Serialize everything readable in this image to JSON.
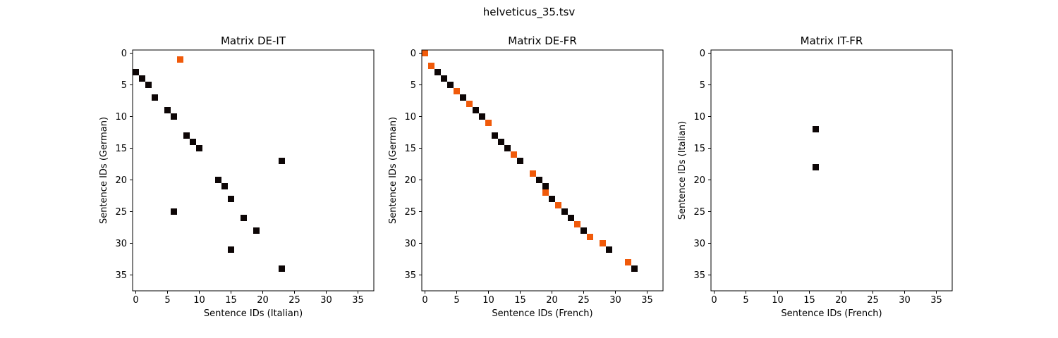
{
  "figure_title": "helveticus_35.tsv",
  "colors": {
    "black_cell": "#0d0606",
    "orange_cell": "#f05a0a",
    "axis": "#000000",
    "background": "#ffffff"
  },
  "chart_data": [
    {
      "type": "heatmap",
      "title": "Matrix DE-IT",
      "xlabel": "Sentence IDs (Italian)",
      "ylabel": "Sentence IDs (German)",
      "xlim": [
        -0.5,
        37.5
      ],
      "ylim": [
        37.5,
        -0.5
      ],
      "y_inverted": true,
      "xticks": [
        0,
        5,
        10,
        15,
        20,
        25,
        30,
        35
      ],
      "yticks": [
        0,
        5,
        10,
        15,
        20,
        25,
        30,
        35
      ],
      "grid": false,
      "points": [
        {
          "x": 7,
          "y": 1,
          "color": "orange"
        },
        {
          "x": 0,
          "y": 3,
          "color": "black"
        },
        {
          "x": 1,
          "y": 4,
          "color": "black"
        },
        {
          "x": 2,
          "y": 5,
          "color": "black"
        },
        {
          "x": 3,
          "y": 7,
          "color": "black"
        },
        {
          "x": 5,
          "y": 9,
          "color": "black"
        },
        {
          "x": 6,
          "y": 10,
          "color": "black"
        },
        {
          "x": 8,
          "y": 13,
          "color": "black"
        },
        {
          "x": 9,
          "y": 14,
          "color": "black"
        },
        {
          "x": 10,
          "y": 15,
          "color": "black"
        },
        {
          "x": 23,
          "y": 17,
          "color": "black"
        },
        {
          "x": 13,
          "y": 20,
          "color": "black"
        },
        {
          "x": 14,
          "y": 21,
          "color": "black"
        },
        {
          "x": 15,
          "y": 23,
          "color": "black"
        },
        {
          "x": 6,
          "y": 25,
          "color": "black"
        },
        {
          "x": 17,
          "y": 26,
          "color": "black"
        },
        {
          "x": 19,
          "y": 28,
          "color": "black"
        },
        {
          "x": 15,
          "y": 31,
          "color": "black"
        },
        {
          "x": 23,
          "y": 34,
          "color": "black"
        }
      ]
    },
    {
      "type": "heatmap",
      "title": "Matrix DE-FR",
      "xlabel": "Sentence IDs (French)",
      "ylabel": "Sentence IDs (German)",
      "xlim": [
        -0.5,
        37.5
      ],
      "ylim": [
        37.5,
        -0.5
      ],
      "y_inverted": true,
      "xticks": [
        0,
        5,
        10,
        15,
        20,
        25,
        30,
        35
      ],
      "yticks": [
        0,
        5,
        10,
        15,
        20,
        25,
        30,
        35
      ],
      "grid": false,
      "points": [
        {
          "x": 0,
          "y": 0,
          "color": "orange"
        },
        {
          "x": 1,
          "y": 2,
          "color": "orange"
        },
        {
          "x": 2,
          "y": 3,
          "color": "black"
        },
        {
          "x": 3,
          "y": 4,
          "color": "black"
        },
        {
          "x": 4,
          "y": 5,
          "color": "black"
        },
        {
          "x": 5,
          "y": 6,
          "color": "orange"
        },
        {
          "x": 6,
          "y": 7,
          "color": "black"
        },
        {
          "x": 7,
          "y": 8,
          "color": "orange"
        },
        {
          "x": 8,
          "y": 9,
          "color": "black"
        },
        {
          "x": 9,
          "y": 10,
          "color": "black"
        },
        {
          "x": 10,
          "y": 11,
          "color": "orange"
        },
        {
          "x": 11,
          "y": 13,
          "color": "black"
        },
        {
          "x": 12,
          "y": 14,
          "color": "black"
        },
        {
          "x": 13,
          "y": 15,
          "color": "black"
        },
        {
          "x": 14,
          "y": 16,
          "color": "orange"
        },
        {
          "x": 15,
          "y": 17,
          "color": "black"
        },
        {
          "x": 17,
          "y": 19,
          "color": "orange"
        },
        {
          "x": 18,
          "y": 20,
          "color": "black"
        },
        {
          "x": 19,
          "y": 21,
          "color": "black"
        },
        {
          "x": 19,
          "y": 22,
          "color": "orange"
        },
        {
          "x": 20,
          "y": 23,
          "color": "black"
        },
        {
          "x": 21,
          "y": 24,
          "color": "orange"
        },
        {
          "x": 22,
          "y": 25,
          "color": "black"
        },
        {
          "x": 23,
          "y": 26,
          "color": "black"
        },
        {
          "x": 24,
          "y": 27,
          "color": "orange"
        },
        {
          "x": 25,
          "y": 28,
          "color": "black"
        },
        {
          "x": 26,
          "y": 29,
          "color": "orange"
        },
        {
          "x": 28,
          "y": 30,
          "color": "orange"
        },
        {
          "x": 29,
          "y": 31,
          "color": "black"
        },
        {
          "x": 32,
          "y": 33,
          "color": "orange"
        },
        {
          "x": 33,
          "y": 34,
          "color": "black"
        }
      ]
    },
    {
      "type": "heatmap",
      "title": "Matrix IT-FR",
      "xlabel": "Sentence IDs (French)",
      "ylabel": "Sentence IDs (Italian)",
      "xlim": [
        -0.5,
        37.5
      ],
      "ylim": [
        37.5,
        -0.5
      ],
      "y_inverted": true,
      "xticks": [
        0,
        5,
        10,
        15,
        20,
        25,
        30,
        35
      ],
      "yticks": [
        0,
        5,
        10,
        15,
        20,
        25,
        30,
        35
      ],
      "grid": false,
      "points": [
        {
          "x": 16,
          "y": 12,
          "color": "black"
        },
        {
          "x": 16,
          "y": 18,
          "color": "black"
        }
      ]
    }
  ]
}
